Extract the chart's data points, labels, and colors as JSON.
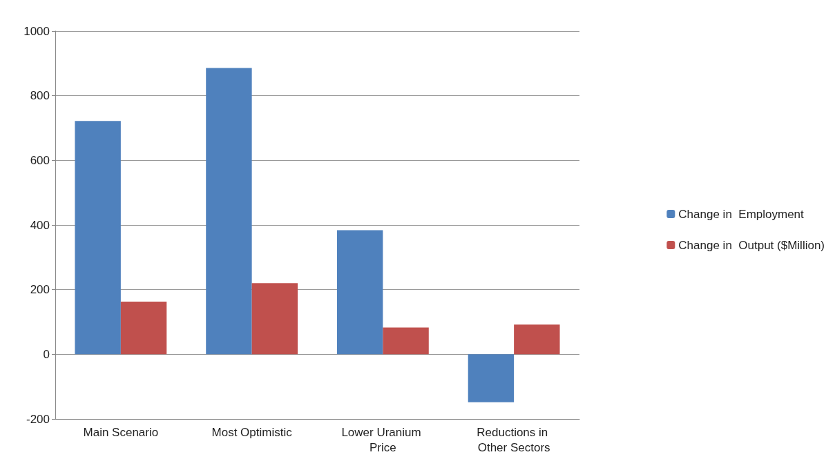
{
  "chart_data": {
    "type": "bar",
    "categories": [
      "Main Scenario",
      "Most Optimistic",
      "Lower Uranium Price",
      "Reductions in Other Sectors"
    ],
    "series": [
      {
        "name": "Change in  Employment",
        "color": "#4f81bd",
        "values": [
          722,
          886,
          384,
          -148
        ]
      },
      {
        "name": "Change in  Output ($Million)",
        "color": "#c0504d",
        "values": [
          163,
          220,
          83,
          92
        ]
      }
    ],
    "ylim": [
      -200,
      1000
    ],
    "yticks": [
      -200,
      0,
      200,
      400,
      600,
      800,
      1000
    ],
    "grid": "y",
    "legend": "right"
  }
}
